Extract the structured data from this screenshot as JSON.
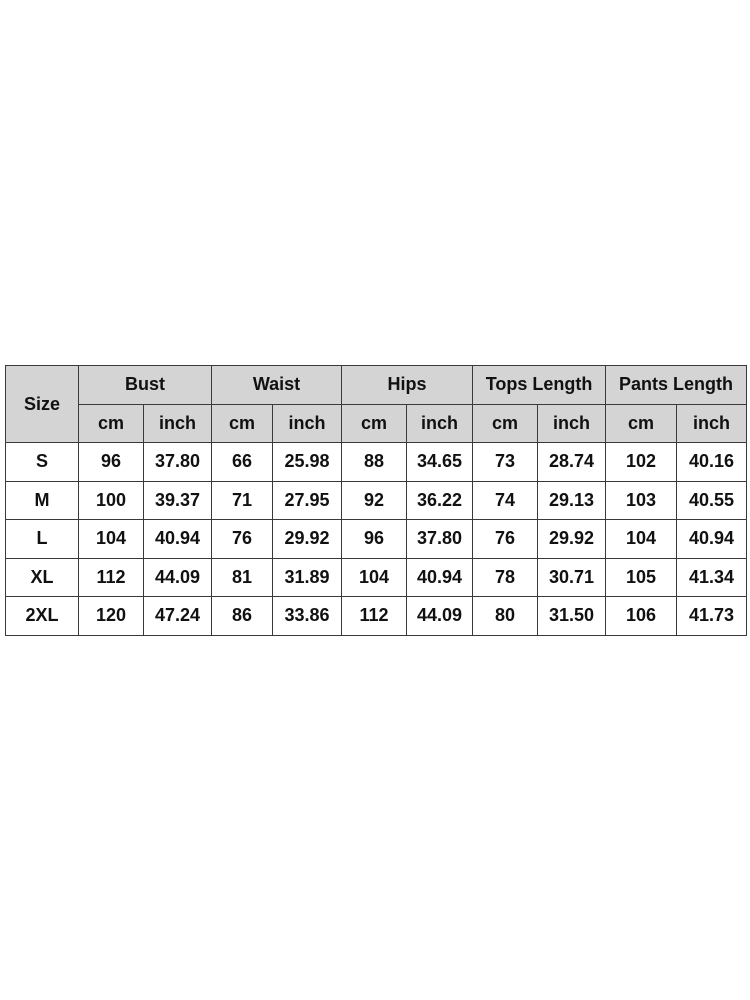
{
  "table": {
    "size_header": "Size",
    "groups": [
      "Bust",
      "Waist",
      "Hips",
      "Tops Length",
      "Pants Length"
    ],
    "units": [
      "cm",
      "inch"
    ],
    "rows": [
      {
        "size": "S",
        "values": [
          "96",
          "37.80",
          "66",
          "25.98",
          "88",
          "34.65",
          "73",
          "28.74",
          "102",
          "40.16"
        ]
      },
      {
        "size": "M",
        "values": [
          "100",
          "39.37",
          "71",
          "27.95",
          "92",
          "36.22",
          "74",
          "29.13",
          "103",
          "40.55"
        ]
      },
      {
        "size": "L",
        "values": [
          "104",
          "40.94",
          "76",
          "29.92",
          "96",
          "37.80",
          "76",
          "29.92",
          "104",
          "40.94"
        ]
      },
      {
        "size": "XL",
        "values": [
          "112",
          "44.09",
          "81",
          "31.89",
          "104",
          "40.94",
          "78",
          "30.71",
          "105",
          "41.34"
        ]
      },
      {
        "size": "2XL",
        "values": [
          "120",
          "47.24",
          "86",
          "33.86",
          "112",
          "44.09",
          "80",
          "31.50",
          "106",
          "41.73"
        ]
      }
    ],
    "colors": {
      "header_bg": "#d4d4d4",
      "border": "#3a3a3a"
    }
  }
}
